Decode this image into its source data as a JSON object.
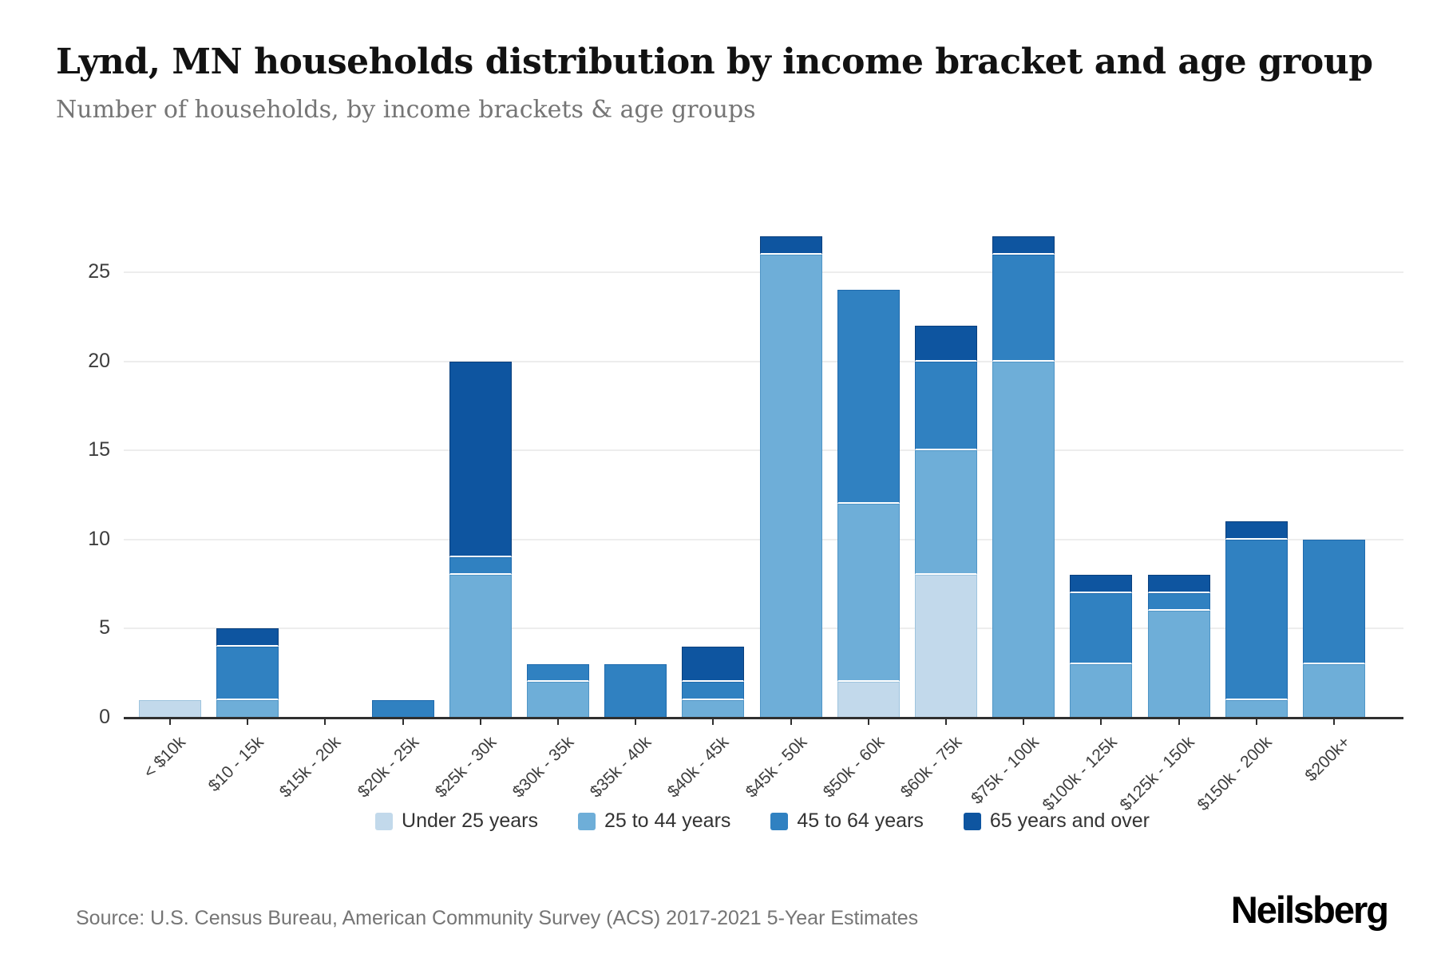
{
  "header": {
    "title": "Lynd, MN households distribution by income bracket and age group",
    "subtitle": "Number of households, by income brackets & age groups"
  },
  "footer": {
    "source": "Source: U.S. Census Bureau, American Community Survey (ACS) 2017-2021 5-Year Estimates",
    "brand": "Neilsberg"
  },
  "chart_data": {
    "type": "bar",
    "stacked": true,
    "title": "Lynd, MN households distribution by income bracket and age group",
    "xlabel": "",
    "ylabel": "Number of households",
    "grid": true,
    "legend_position": "bottom",
    "ylim": [
      0,
      25
    ],
    "yticks": [
      0,
      5,
      10,
      15,
      20,
      25
    ],
    "categories": [
      "< $10k",
      "$10 - 15k",
      "$15k - 20k",
      "$20k - 25k",
      "$25k - 30k",
      "$30k - 35k",
      "$35k - 40k",
      "$40k - 45k",
      "$45k - 50k",
      "$50k - 60k",
      "$60k - 75k",
      "$75k - 100k",
      "$100k - 125k",
      "$125k - 150k",
      "$150k - 200k",
      "$200k+"
    ],
    "series": [
      {
        "name": "Under 25 years",
        "color": "#c2d9eb",
        "stroke": "#9ec4de",
        "values": [
          1,
          0,
          0,
          0,
          0,
          0,
          0,
          0,
          0,
          2,
          8,
          0,
          0,
          0,
          0,
          0
        ]
      },
      {
        "name": "25 to 44 years",
        "color": "#6eaed8",
        "stroke": "#4f95c6",
        "values": [
          0,
          1,
          0,
          0,
          8,
          2,
          0,
          1,
          26,
          10,
          7,
          20,
          3,
          6,
          1,
          3
        ]
      },
      {
        "name": "45 to 64 years",
        "color": "#3081c1",
        "stroke": "#1f6aad",
        "values": [
          0,
          3,
          0,
          1,
          1,
          1,
          3,
          1,
          0,
          12,
          5,
          6,
          4,
          1,
          9,
          7
        ]
      },
      {
        "name": "65 years and over",
        "color": "#0e55a0",
        "stroke": "#093f7d",
        "values": [
          0,
          1,
          0,
          0,
          11,
          0,
          0,
          2,
          1,
          0,
          2,
          1,
          1,
          1,
          1,
          0
        ]
      }
    ],
    "totals": [
      1,
      5,
      0,
      1,
      20,
      3,
      3,
      4,
      27,
      24,
      22,
      27,
      8,
      8,
      11,
      10
    ]
  }
}
